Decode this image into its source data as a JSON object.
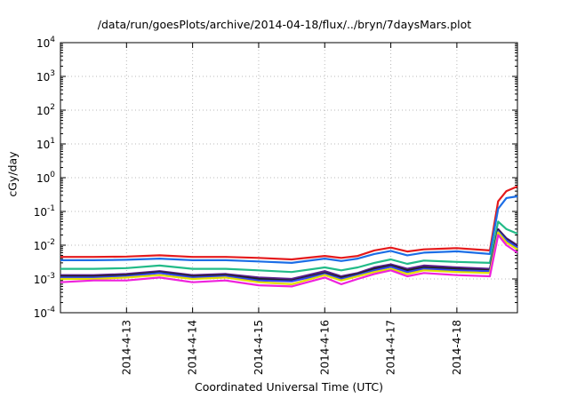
{
  "chart_data": {
    "type": "line",
    "title": "/data/run/goesPlots/archive/2014-04-18/flux/../bryn/7daysMars.plot",
    "xlabel": "Coordinated Universal Time (UTC)",
    "ylabel": "cGy/day",
    "y_scale": "log",
    "ylim": [
      0.0001,
      10000
    ],
    "xlim": [
      "2014-04-12T00:00",
      "2014-04-18T22:00"
    ],
    "grid": true,
    "legend": "none",
    "yticks": [
      {
        "base": "10",
        "exp": "4"
      },
      {
        "base": "10",
        "exp": "3"
      },
      {
        "base": "10",
        "exp": "2"
      },
      {
        "base": "10",
        "exp": "1"
      },
      {
        "base": "10",
        "exp": "0"
      },
      {
        "base": "10",
        "exp": "-1"
      },
      {
        "base": "10",
        "exp": "-2"
      },
      {
        "base": "10",
        "exp": "-3"
      },
      {
        "base": "10",
        "exp": "-4"
      }
    ],
    "xticks": [
      {
        "label": "2014-4-13",
        "x": "2014-04-13T00:00"
      },
      {
        "label": "2014-4-14",
        "x": "2014-04-14T00:00"
      },
      {
        "label": "2014-4-15",
        "x": "2014-04-15T00:00"
      },
      {
        "label": "2014-4-16",
        "x": "2014-04-16T00:00"
      },
      {
        "label": "2014-4-17",
        "x": "2014-04-17T00:00"
      },
      {
        "label": "2014-4-18",
        "x": "2014-04-18T00:00"
      }
    ],
    "x": [
      "2014-04-12T00:00",
      "2014-04-12T12:00",
      "2014-04-13T00:00",
      "2014-04-13T12:00",
      "2014-04-14T00:00",
      "2014-04-14T12:00",
      "2014-04-15T00:00",
      "2014-04-15T12:00",
      "2014-04-16T00:00",
      "2014-04-16T06:00",
      "2014-04-16T12:00",
      "2014-04-16T18:00",
      "2014-04-17T00:00",
      "2014-04-17T06:00",
      "2014-04-17T12:00",
      "2014-04-18T00:00",
      "2014-04-18T12:00",
      "2014-04-18T15:00",
      "2014-04-18T18:00",
      "2014-04-18T22:00"
    ],
    "series": [
      {
        "color": "#e41a1c",
        "values": [
          0.0045,
          0.0045,
          0.0046,
          0.005,
          0.0045,
          0.0045,
          0.0042,
          0.0038,
          0.0048,
          0.0042,
          0.0048,
          0.007,
          0.0085,
          0.0065,
          0.0075,
          0.0082,
          0.007,
          0.2,
          0.4,
          0.55
        ]
      },
      {
        "color": "#1c6ee6",
        "values": [
          0.0036,
          0.0036,
          0.0037,
          0.004,
          0.0036,
          0.0036,
          0.0033,
          0.003,
          0.004,
          0.0034,
          0.004,
          0.0055,
          0.0068,
          0.005,
          0.006,
          0.0066,
          0.0055,
          0.12,
          0.25,
          0.28
        ]
      },
      {
        "color": "#22bb88",
        "values": [
          0.002,
          0.002,
          0.0021,
          0.0025,
          0.002,
          0.002,
          0.0018,
          0.0016,
          0.0022,
          0.0018,
          0.0022,
          0.003,
          0.0038,
          0.0028,
          0.0035,
          0.0032,
          0.003,
          0.05,
          0.03,
          0.022
        ]
      },
      {
        "color": "#5a1e8c",
        "values": [
          0.0013,
          0.0013,
          0.0014,
          0.0017,
          0.0013,
          0.0014,
          0.0011,
          0.001,
          0.0017,
          0.0012,
          0.0015,
          0.0022,
          0.0027,
          0.002,
          0.0025,
          0.0022,
          0.002,
          0.03,
          0.016,
          0.01
        ]
      },
      {
        "color": "#222222",
        "values": [
          0.0012,
          0.0012,
          0.0013,
          0.0016,
          0.0012,
          0.0013,
          0.001,
          0.0009,
          0.0015,
          0.0011,
          0.0014,
          0.002,
          0.0025,
          0.0018,
          0.0022,
          0.002,
          0.0018,
          0.028,
          0.015,
          0.009
        ]
      },
      {
        "color": "#3344ee",
        "values": [
          0.0011,
          0.0011,
          0.0012,
          0.0015,
          0.0011,
          0.0012,
          0.0009,
          0.00085,
          0.0014,
          0.001,
          0.0013,
          0.0018,
          0.0023,
          0.0016,
          0.002,
          0.0018,
          0.0017,
          0.026,
          0.014,
          0.0085
        ]
      },
      {
        "color": "#e0e000",
        "values": [
          0.001,
          0.001,
          0.0011,
          0.0013,
          0.001,
          0.0011,
          0.0008,
          0.0007,
          0.0013,
          0.0009,
          0.0012,
          0.0016,
          0.002,
          0.0014,
          0.0018,
          0.0016,
          0.0015,
          0.024,
          0.012,
          0.0075
        ]
      },
      {
        "color": "#ee22dd",
        "values": [
          0.0008,
          0.0009,
          0.0009,
          0.0011,
          0.0008,
          0.0009,
          0.00065,
          0.0006,
          0.0011,
          0.0007,
          0.001,
          0.0014,
          0.0018,
          0.0012,
          0.0015,
          0.0013,
          0.0012,
          0.02,
          0.01,
          0.006
        ]
      }
    ]
  }
}
